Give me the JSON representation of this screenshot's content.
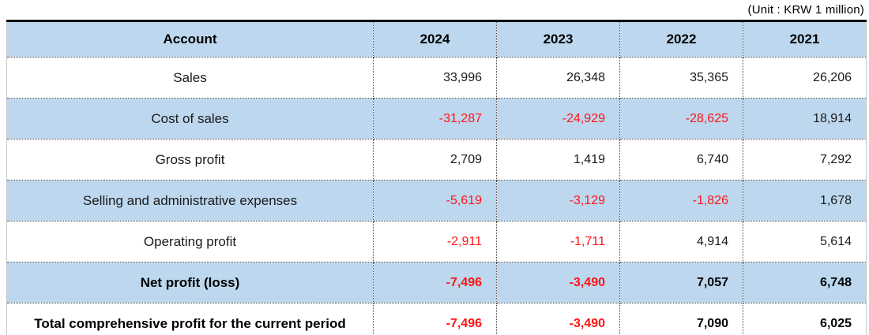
{
  "unit_label": "(Unit : KRW 1 million)",
  "colors": {
    "header_bg": "#bdd7ee",
    "shaded_row_bg": "#bdd7ee",
    "negative_value": "#ff1414",
    "text": "#1a1a1a",
    "thick_border": "#000000"
  },
  "table": {
    "columns": [
      "Account",
      "2024",
      "2023",
      "2022",
      "2021"
    ],
    "rows": [
      {
        "account": "Sales",
        "bold": false,
        "shaded": false,
        "values": [
          "33,996",
          "26,348",
          "35,365",
          "26,206"
        ]
      },
      {
        "account": "Cost of sales",
        "bold": false,
        "shaded": true,
        "values": [
          "-31,287",
          "-24,929",
          "-28,625",
          "18,914"
        ]
      },
      {
        "account": "Gross profit",
        "bold": false,
        "shaded": false,
        "values": [
          "2,709",
          "1,419",
          "6,740",
          "7,292"
        ]
      },
      {
        "account": "Selling and administrative expenses",
        "bold": false,
        "shaded": true,
        "values": [
          "-5,619",
          "-3,129",
          "-1,826",
          "1,678"
        ]
      },
      {
        "account": "Operating profit",
        "bold": false,
        "shaded": false,
        "values": [
          "-2,911",
          "-1,711",
          "4,914",
          "5,614"
        ]
      },
      {
        "account": "Net profit (loss)",
        "bold": true,
        "shaded": true,
        "values": [
          "-7,496",
          "-3,490",
          "7,057",
          "6,748"
        ]
      },
      {
        "account": "Total comprehensive profit for the current period",
        "bold": true,
        "shaded": false,
        "values": [
          "-7,496",
          "-3,490",
          "7,090",
          "6,025"
        ]
      }
    ]
  },
  "chart_data": {
    "type": "table",
    "title": "Income statement summary (Unit : KRW 1 million)",
    "categories": [
      "2024",
      "2023",
      "2022",
      "2021"
    ],
    "series": [
      {
        "name": "Sales",
        "values": [
          33996,
          26348,
          35365,
          26206
        ]
      },
      {
        "name": "Cost of sales",
        "values": [
          -31287,
          -24929,
          -28625,
          18914
        ]
      },
      {
        "name": "Gross profit",
        "values": [
          2709,
          1419,
          6740,
          7292
        ]
      },
      {
        "name": "Selling and administrative expenses",
        "values": [
          -5619,
          -3129,
          -1826,
          1678
        ]
      },
      {
        "name": "Operating profit",
        "values": [
          -2911,
          -1711,
          4914,
          5614
        ]
      },
      {
        "name": "Net profit (loss)",
        "values": [
          -7496,
          -3490,
          7057,
          6748
        ]
      },
      {
        "name": "Total comprehensive profit for the current period",
        "values": [
          -7496,
          -3490,
          7090,
          6025
        ]
      }
    ]
  }
}
